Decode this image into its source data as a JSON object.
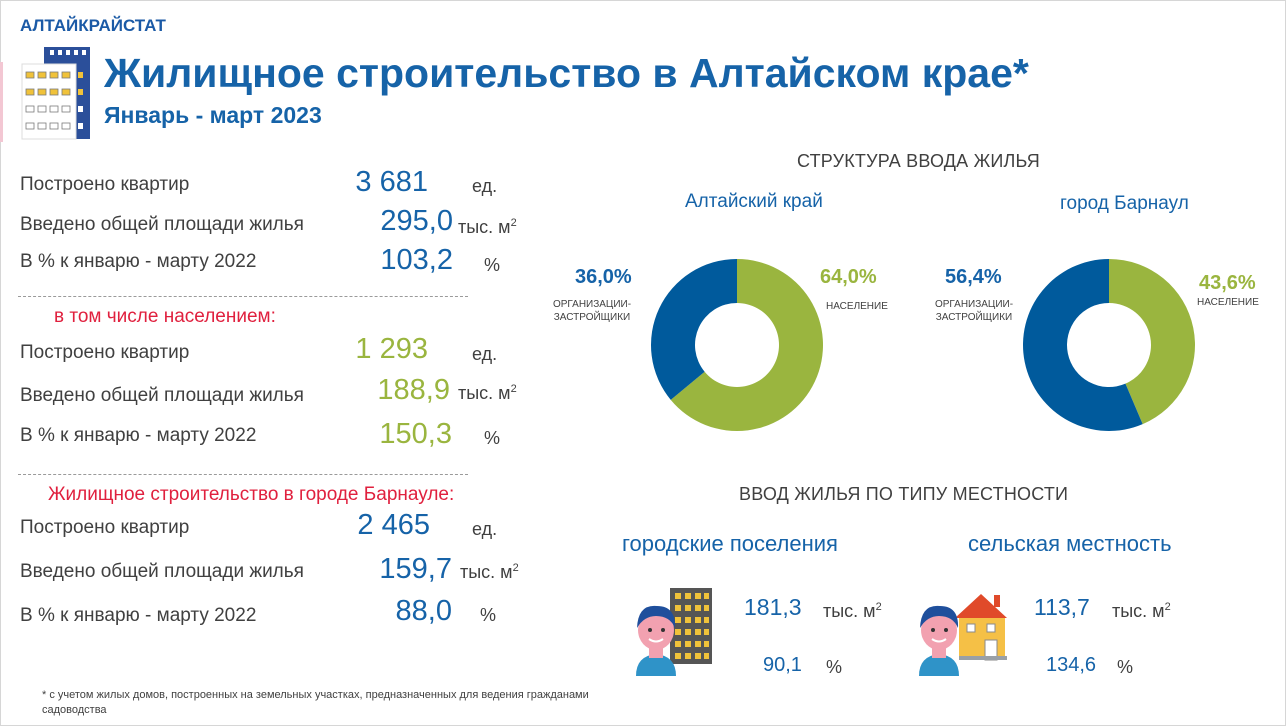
{
  "header": {
    "org": "АЛТАЙКРАЙСТАТ",
    "title": "Жилищное строительство в Алтайском крае*",
    "subtitle": "Январь - март 2023"
  },
  "total": {
    "rows": [
      {
        "label": "Построено квартир",
        "value": "3 681",
        "unit": "ед.",
        "sup": ""
      },
      {
        "label": "Введено общей площади жилья",
        "value": "295,0",
        "unit": "тыс. м",
        "sup": "2"
      },
      {
        "label": "В % к январю - марту 2022",
        "value": "103,2",
        "unit": "%",
        "sup": ""
      }
    ]
  },
  "population": {
    "heading": "в том числе населением:",
    "rows": [
      {
        "label": "Построено квартир",
        "value": "1 293",
        "unit": "ед.",
        "sup": ""
      },
      {
        "label": "Введено общей площади жилья",
        "value": "188,9",
        "unit": "тыс. м",
        "sup": "2"
      },
      {
        "label": "В % к январю - марту 2022",
        "value": "150,3",
        "unit": "%",
        "sup": ""
      }
    ]
  },
  "barnaul": {
    "heading": "Жилищное строительство в городе Барнауле:",
    "rows": [
      {
        "label": "Построено квартир",
        "value": "2 465",
        "unit": "ед.",
        "sup": ""
      },
      {
        "label": "Введено общей площади жилья",
        "value": "159,7",
        "unit": "тыс. м",
        "sup": "2"
      },
      {
        "label": "В % к январю - марту 2022",
        "value": "88,0",
        "unit": "%",
        "sup": ""
      }
    ]
  },
  "structure": {
    "heading": "СТРУКТУРА ВВОДА ЖИЛЬЯ"
  },
  "colors": {
    "blue": "#005a9c",
    "green": "#9ab53f",
    "red": "#e0203e"
  },
  "chart_data": [
    {
      "type": "pie",
      "title": "Алтайский край",
      "slices": [
        {
          "label": "ОРГАНИЗАЦИИ-ЗАСТРОЙЩИКИ",
          "value": 36.0,
          "text": "36,0%",
          "color": "#005a9c"
        },
        {
          "label": "НАСЕЛЕНИЕ",
          "value": 64.0,
          "text": "64,0%",
          "color": "#9ab53f"
        }
      ]
    },
    {
      "type": "pie",
      "title": "город Барнаул",
      "slices": [
        {
          "label": "ОРГАНИЗАЦИИ-ЗАСТРОЙЩИКИ",
          "value": 56.4,
          "text": "56,4%",
          "color": "#005a9c"
        },
        {
          "label": "НАСЕЛЕНИЕ",
          "value": 43.6,
          "text": "43,6%",
          "color": "#9ab53f"
        }
      ]
    }
  ],
  "donut_labels": {
    "org_line1": "ОРГАНИЗАЦИИ-",
    "org_line2": "ЗАСТРОЙЩИКИ",
    "pop": "НАСЕЛЕНИЕ"
  },
  "locality": {
    "heading": "ВВОД ЖИЛЬЯ ПО ТИПУ МЕСТНОСТИ",
    "urban": {
      "label": "городские поселения",
      "value": "181,3",
      "unit": "тыс. м",
      "sup": "2",
      "percent": "90,1",
      "percent_unit": "%"
    },
    "rural": {
      "label": "сельская местность",
      "value": "113,7",
      "unit": "тыс. м",
      "sup": "2",
      "percent": "134,6",
      "percent_unit": "%"
    }
  },
  "footnote": "* с учетом жилых домов, построенных на земельных участках, предназначенных для ведения гражданами садоводства"
}
